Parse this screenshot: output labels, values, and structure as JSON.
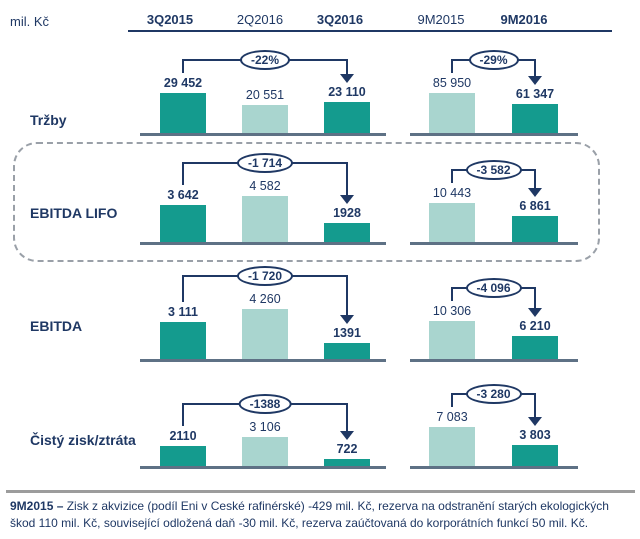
{
  "header": {
    "unit_label": "mil. Kč",
    "columns": [
      {
        "label": "3Q2015"
      },
      {
        "label": "2Q2016"
      },
      {
        "label": "3Q2016"
      },
      {
        "label": "9M2015"
      },
      {
        "label": "9M2016"
      }
    ]
  },
  "colors": {
    "bar_dark": "#149B8E",
    "bar_light": "#A9D5CF",
    "navy": "#1F3864",
    "axis": "#5E7185",
    "highlight_dash": "#9AA0A8"
  },
  "chart_data": [
    {
      "type": "bar",
      "title": "Tržby",
      "unit": "mil. Kč",
      "categories": [
        "3Q2015",
        "2Q2016",
        "3Q2016",
        "9M2015",
        "9M2016"
      ],
      "values": [
        29452,
        20551,
        23110,
        85950,
        61347
      ],
      "labels": [
        "29 452",
        "20 551",
        "23 110",
        "85 950",
        "61 347"
      ],
      "delta_quarter": "-22%",
      "delta_9m": "-29%",
      "ymax_quarter": 38300,
      "ymax_9m": 111800,
      "highlighted": false
    },
    {
      "type": "bar",
      "title": "EBITDA LIFO",
      "unit": "mil. Kč",
      "categories": [
        "3Q2015",
        "2Q2016",
        "3Q2016",
        "9M2015",
        "9M2016"
      ],
      "values": [
        3642,
        4582,
        1928,
        10443,
        6861
      ],
      "labels": [
        "3 642",
        "4 582",
        "1928",
        "10 443",
        "6 861"
      ],
      "delta_quarter": "-1 714",
      "delta_9m": "-3 582",
      "ymax_quarter": 5180,
      "ymax_9m": 13930,
      "highlighted": true
    },
    {
      "type": "bar",
      "title": "EBITDA",
      "unit": "mil. Kč",
      "categories": [
        "3Q2015",
        "2Q2016",
        "3Q2016",
        "9M2015",
        "9M2016"
      ],
      "values": [
        3111,
        4260,
        1391,
        10306,
        6210
      ],
      "labels": [
        "3 111",
        "4 260",
        "1391",
        "10 306",
        "6 210"
      ],
      "delta_quarter": "-1 720",
      "delta_9m": "-4 096",
      "ymax_quarter": 4430,
      "ymax_9m": 14100,
      "highlighted": false
    },
    {
      "type": "bar",
      "title": "Čistý zisk/ztráta",
      "unit": "mil. Kč",
      "categories": [
        "3Q2015",
        "2Q2016",
        "3Q2016",
        "9M2015",
        "9M2016"
      ],
      "values": [
        2110,
        3106,
        722,
        7083,
        3803
      ],
      "labels": [
        "2110",
        "3 106",
        "722",
        "7 083",
        "3 803"
      ],
      "delta_quarter": "-1388",
      "delta_9m": "-3 280",
      "ymax_quarter": 5570,
      "ymax_9m": 9450,
      "highlighted": false
    }
  ],
  "footnote": {
    "prefix": "9M2015 –",
    "text": " Zisk z akvizice (podíl Eni v Ceské rafinérské) -429 mil. Kč, rezerva na odstranění starých ekologických škod 110 mil. Kč, související odložená daň -30 mil. Kč, rezerva zaúčtovaná do korporátních funkcí 50 mil. Kč."
  }
}
